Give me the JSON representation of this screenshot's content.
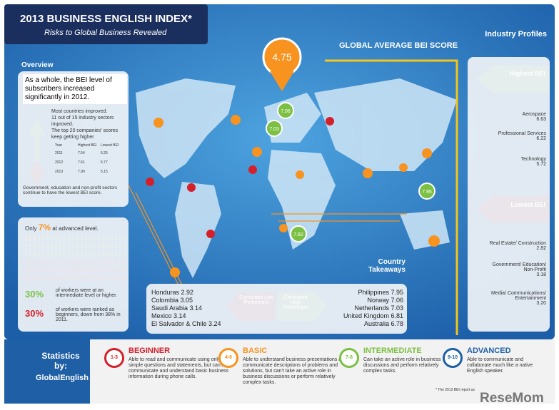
{
  "header": {
    "title": "2013 BUSINESS ENGLISH INDEX*",
    "subtitle": "Risks to Global Business Revealed"
  },
  "global": {
    "label": "GLOBAL AVERAGE BEI SCORE",
    "score": "4.75"
  },
  "overview": {
    "title": "Overview",
    "headline": "As a whole, the BEI level of subscribers increased significantly in 2012.",
    "points": [
      "Most countries improved.",
      "11 out of 15 industry sectors improved.",
      "The top 20 companies' scores keep getting higher"
    ],
    "table": {
      "headers": [
        "Year",
        "Highest BEI",
        "Lowest BEI"
      ],
      "rows": [
        [
          "2011",
          "7.54",
          "5.25"
        ],
        [
          "2012",
          "7.61",
          "5.77"
        ],
        [
          "2013",
          "7.99",
          "5.15"
        ]
      ]
    },
    "footer": "Government, education and non-profit sectors continue to have the lowest BEI score."
  },
  "stats": {
    "prefix": "Only",
    "advanced_pct": "7%",
    "advanced_text": "at advanced level.",
    "items": [
      {
        "pct": "30%",
        "text": "of workers were at an intermediate level or higher."
      },
      {
        "pct": "30%",
        "text": "of workers were ranked as beginners, down from 38% in 2011."
      }
    ]
  },
  "industry": {
    "title": "Industry Profiles",
    "highest": {
      "label": "Highest BEI",
      "items": [
        {
          "name": "Aerospace",
          "score": "6.63"
        },
        {
          "name": "Professional Services",
          "score": "6.22"
        },
        {
          "name": "Technology",
          "score": "5.72"
        }
      ]
    },
    "lowest": {
      "label": "Lowest BEI",
      "items": [
        {
          "name": "Real Estate/ Construction",
          "score": "2.82"
        },
        {
          "name": "Government/ Education/ Non-Profit",
          "score": "3.18"
        },
        {
          "name": "Media/ Communications/ Entertainment",
          "score": "3.20"
        }
      ]
    }
  },
  "countries": {
    "title": "Country Takeaways",
    "low_label": "Consistent Low Performers",
    "high_label": "Consistent High Performers",
    "low": [
      "Honduras 2.92",
      "Colombia 3.05",
      "Saudi Arabia 3.14",
      "Mexico 3.14",
      "El Salvador & Chile 3.24"
    ],
    "high": [
      "Philippines 7.95",
      "Norway 7.06",
      "Netherlands 7.03",
      "United Kingdom 6.81",
      "Australia 6.78"
    ]
  },
  "map": {
    "pins": [
      "7.06",
      "7.03",
      "7.95",
      "7.60"
    ]
  },
  "levels": [
    {
      "range": "1-3",
      "name": "BEGINNER",
      "desc": "Able to read and communicate using only simple questions and statements, but can't communicate and understand basic business information during phone calls."
    },
    {
      "range": "4-6",
      "name": "BASIC",
      "desc": "Able to understand business presentations and communicate descriptions of problems and solutions, but can't take an active role in business discussions or perform relatively complex tasks."
    },
    {
      "range": "7-8",
      "name": "INTERMEDIATE",
      "desc": "Can take an active role in business discussions and perform relatively complex tasks."
    },
    {
      "range": "9-10",
      "name": "ADVANCED",
      "desc": "Able to communicate and collaborate much like a native English speaker."
    }
  ],
  "footer": {
    "stats_by": "Statistics by:",
    "brand": "GlobalEnglish",
    "note": "* The 2013 BEI report us",
    "watermark": "ReseMom"
  }
}
